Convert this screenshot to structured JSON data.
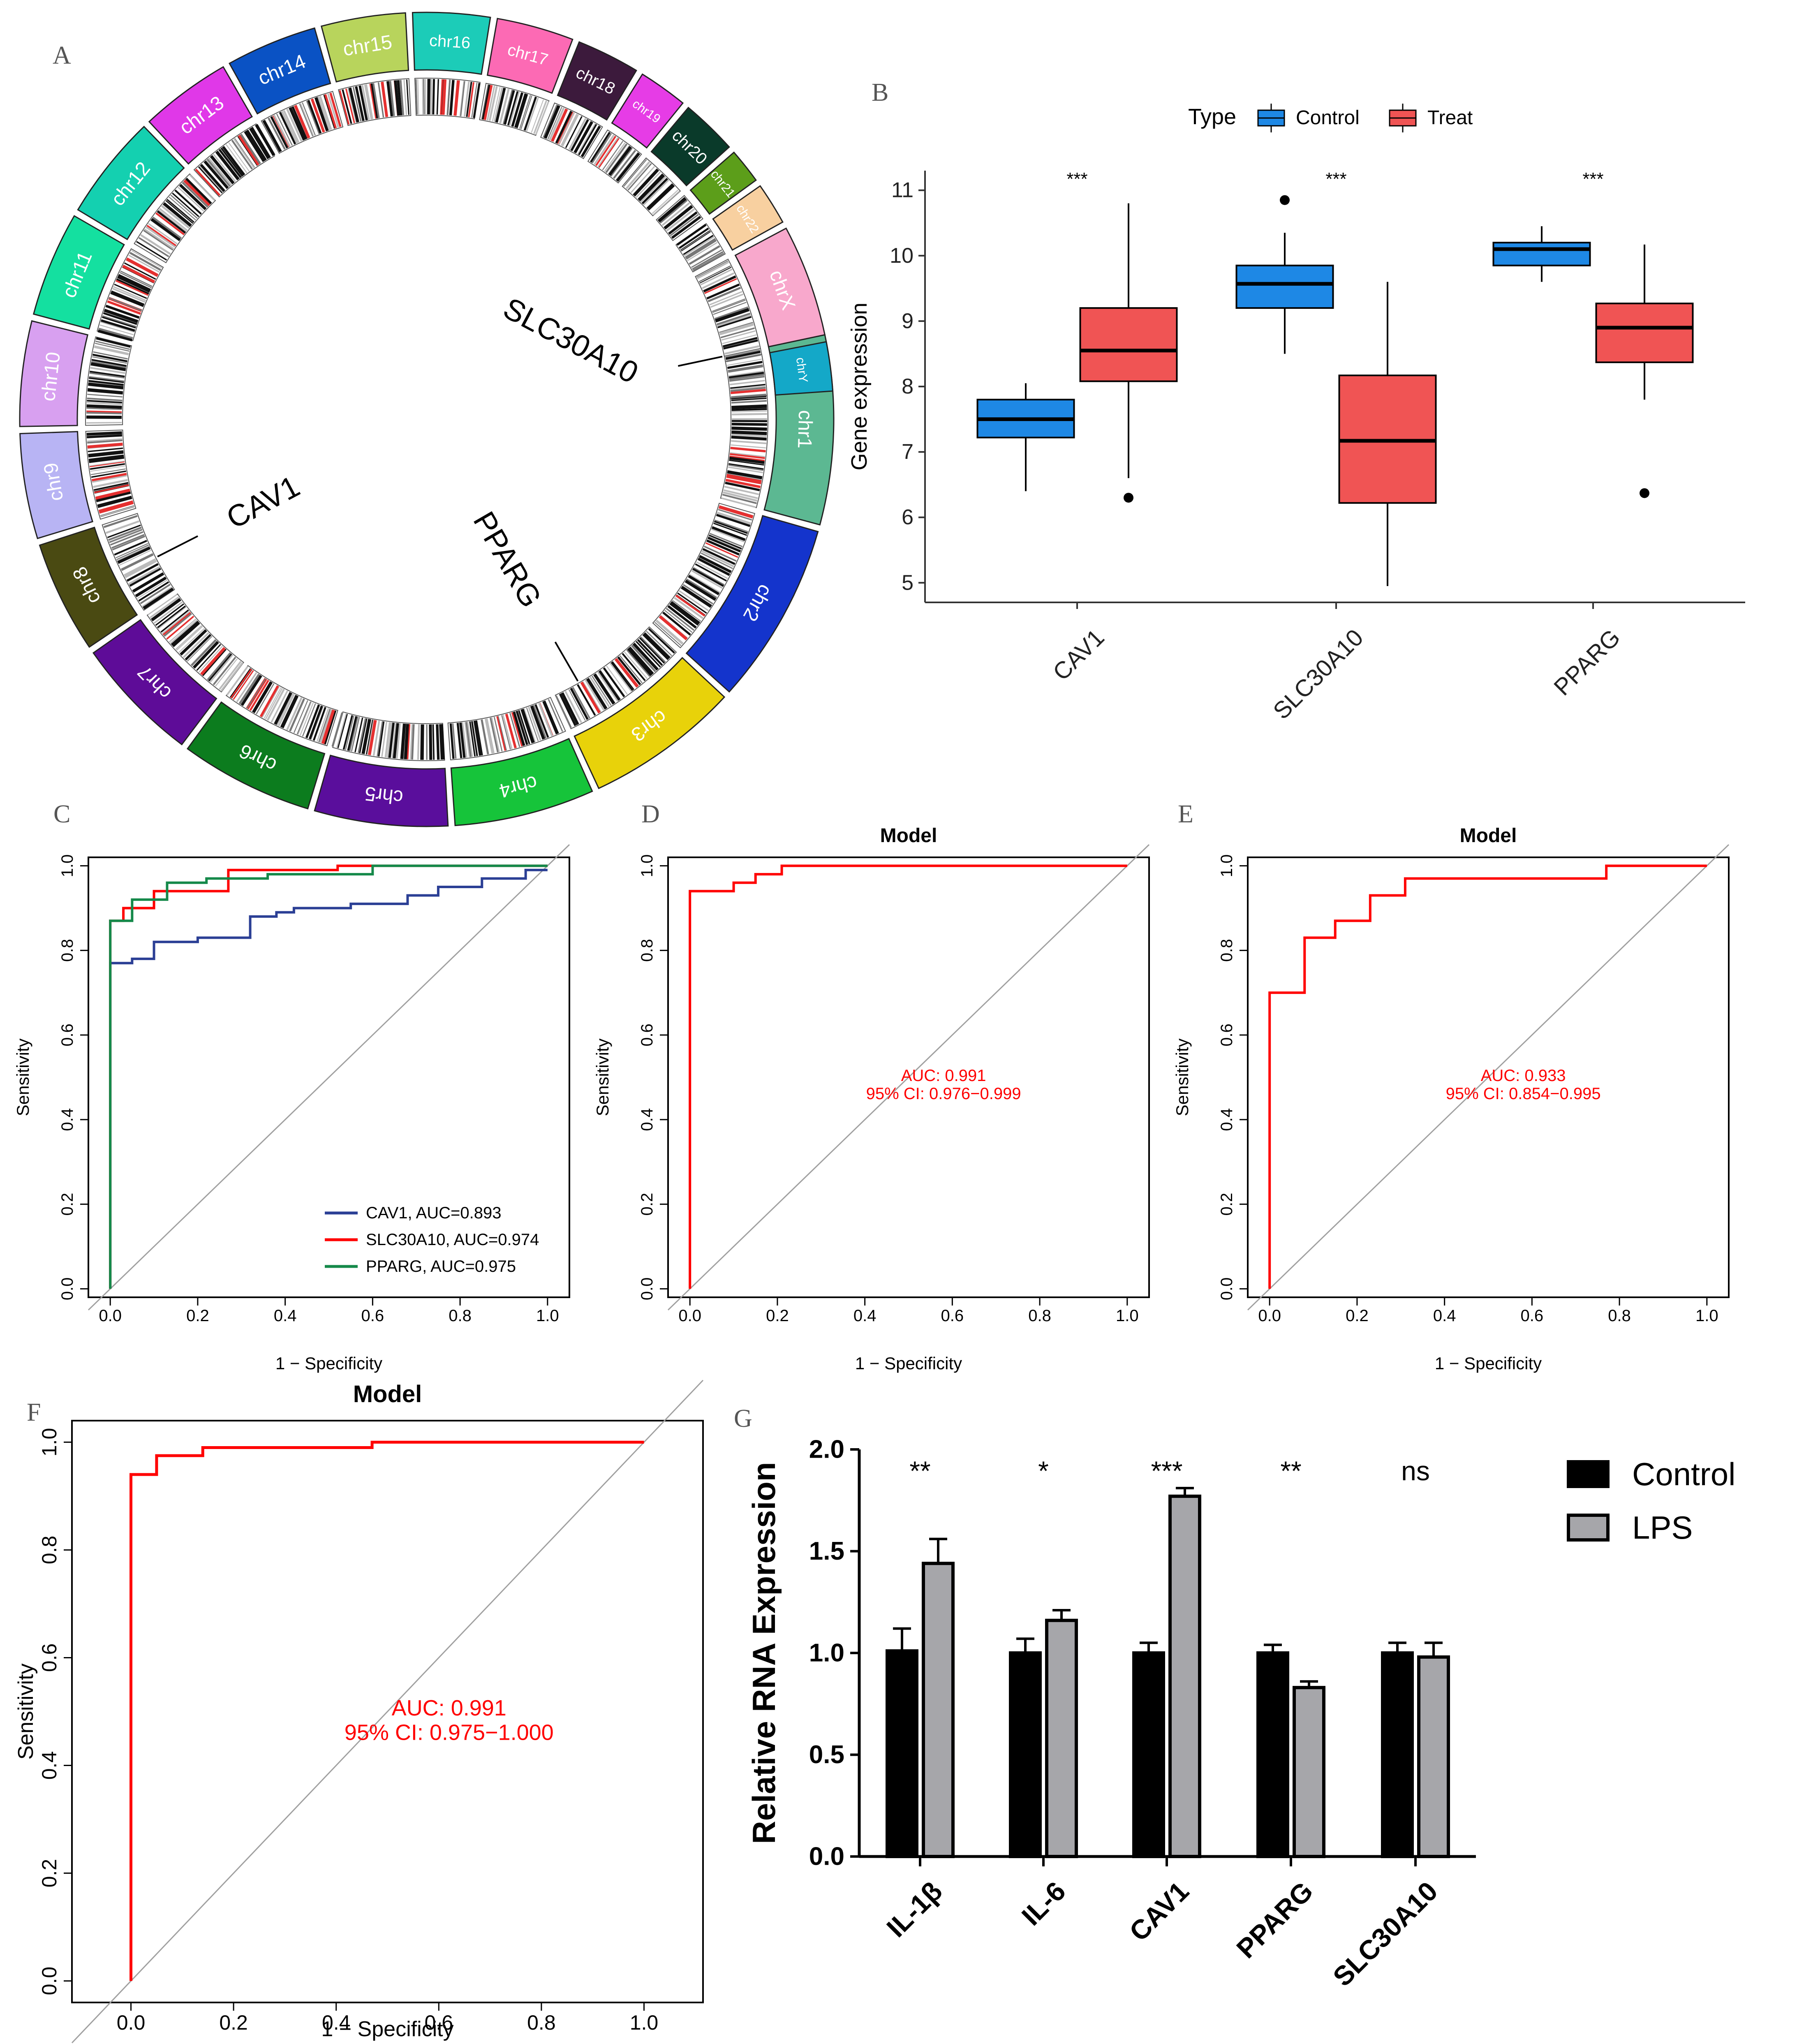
{
  "colors": {
    "control_blue": "#1E88E5",
    "treat_red": "#F05454",
    "roc_red": "#FF0000",
    "roc_blue": "#2B3F95",
    "roc_green": "#15894A",
    "diagonal": "#A0A0A0",
    "bar_control": "#000000",
    "bar_lps": "#A6A6AA"
  },
  "panel_labels": {
    "a": "A",
    "b": "B",
    "c": "C",
    "d": "D",
    "e": "E",
    "f": "F",
    "g": "G"
  },
  "chart_data": [
    {
      "id": "A",
      "type": "circos",
      "chromosomes": [
        {
          "name": "chr1",
          "color": "#5CB892",
          "start_deg": 78,
          "end_deg": 105
        },
        {
          "name": "chr2",
          "color": "#1434CC",
          "start_deg": 106,
          "end_deg": 132
        },
        {
          "name": "chr3",
          "color": "#E8D20A",
          "start_deg": 133,
          "end_deg": 155
        },
        {
          "name": "chr4",
          "color": "#16C43A",
          "start_deg": 156,
          "end_deg": 176
        },
        {
          "name": "chr5",
          "color": "#5A0E9C",
          "start_deg": 177,
          "end_deg": 196
        },
        {
          "name": "chr6",
          "color": "#0C7C1E",
          "start_deg": 197,
          "end_deg": 216
        },
        {
          "name": "chr7",
          "color": "#5E0C98",
          "start_deg": 217,
          "end_deg": 235
        },
        {
          "name": "chr8",
          "color": "#4A4A12",
          "start_deg": 236,
          "end_deg": 252
        },
        {
          "name": "chr9",
          "color": "#B8B4F4",
          "start_deg": 253,
          "end_deg": 268
        },
        {
          "name": "chr10",
          "color": "#D8A0F0",
          "start_deg": 269,
          "end_deg": 284
        },
        {
          "name": "chr11",
          "color": "#14E0A0",
          "start_deg": 285,
          "end_deg": 300
        },
        {
          "name": "chr12",
          "color": "#14D0B0",
          "start_deg": 301,
          "end_deg": 316
        },
        {
          "name": "chr13",
          "color": "#E038E8",
          "start_deg": 317,
          "end_deg": 330
        },
        {
          "name": "chr14",
          "color": "#0A52C4",
          "start_deg": 331,
          "end_deg": 344
        },
        {
          "name": "chr15",
          "color": "#B8D45C",
          "start_deg": 345,
          "end_deg": 357
        },
        {
          "name": "chr16",
          "color": "#1CCCB8",
          "start_deg": 358,
          "end_deg": 369
        },
        {
          "name": "chr17",
          "color": "#FC6AB4",
          "start_deg": 370,
          "end_deg": 381
        },
        {
          "name": "chr18",
          "color": "#3C1A3C",
          "start_deg": 382,
          "end_deg": 391
        },
        {
          "name": "chr19",
          "color": "#E63CE6",
          "start_deg": 392,
          "end_deg": 399
        },
        {
          "name": "chr20",
          "color": "#0A3A2A",
          "start_deg": 400,
          "end_deg": 408
        },
        {
          "name": "chr21",
          "color": "#5C9E1A",
          "start_deg": 409,
          "end_deg": 414
        },
        {
          "name": "chr22",
          "color": "#F8D0A0",
          "start_deg": 415,
          "end_deg": 421
        },
        {
          "name": "chrX",
          "color": "#F8A8CC",
          "start_deg": 422,
          "end_deg": 438
        },
        {
          "name": "chrY",
          "color": "#14A8C8",
          "start_deg": 439,
          "end_deg": 446
        }
      ],
      "genes": [
        {
          "name": "SLC30A10",
          "angle_deg": 78
        },
        {
          "name": "PPARG",
          "angle_deg": 150
        },
        {
          "name": "CAV1",
          "angle_deg": 243
        }
      ]
    },
    {
      "id": "B",
      "type": "box",
      "ylabel": "Gene expression",
      "legend_title": "Type",
      "legend": [
        "Control",
        "Treat"
      ],
      "categories": [
        "CAV1",
        "SLC30A10",
        "PPARG"
      ],
      "yticks": [
        5,
        6,
        7,
        8,
        9,
        10,
        11
      ],
      "ylim": [
        4.7,
        11.3
      ],
      "significance": [
        "***",
        "***",
        "***"
      ],
      "series": [
        {
          "name": "Control",
          "boxes": [
            {
              "min": 6.4,
              "q1": 7.22,
              "median": 7.5,
              "q3": 7.8,
              "max": 8.05,
              "outliers": []
            },
            {
              "min": 8.5,
              "q1": 9.2,
              "median": 9.57,
              "q3": 9.85,
              "max": 10.35,
              "outliers": [
                10.85
              ]
            },
            {
              "min": 9.6,
              "q1": 9.85,
              "median": 10.1,
              "q3": 10.2,
              "max": 10.45,
              "outliers": []
            }
          ]
        },
        {
          "name": "Treat",
          "boxes": [
            {
              "min": 6.6,
              "q1": 8.08,
              "median": 8.55,
              "q3": 9.2,
              "max": 10.8,
              "outliers": [
                6.3
              ]
            },
            {
              "min": 4.95,
              "q1": 6.22,
              "median": 7.17,
              "q3": 8.17,
              "max": 9.6,
              "outliers": []
            },
            {
              "min": 7.8,
              "q1": 8.37,
              "median": 8.9,
              "q3": 9.27,
              "max": 10.17,
              "outliers": [
                6.37
              ]
            }
          ]
        }
      ]
    },
    {
      "id": "C",
      "type": "line",
      "title": "",
      "xlabel": "1 − Specificity",
      "ylabel": "Sensitivity",
      "xticks": [
        "0.0",
        "0.2",
        "0.4",
        "0.6",
        "0.8",
        "1.0"
      ],
      "yticks": [
        "0.0",
        "0.2",
        "0.4",
        "0.6",
        "0.8",
        "1.0"
      ],
      "xlim": [
        -0.05,
        1.05
      ],
      "ylim": [
        -0.02,
        1.02
      ],
      "series": [
        {
          "name": "CAV1, AUC=0.893",
          "color": "#2B3F95",
          "x": [
            0,
            0,
            0.05,
            0.05,
            0.1,
            0.1,
            0.2,
            0.2,
            0.32,
            0.32,
            0.38,
            0.38,
            0.42,
            0.42,
            0.55,
            0.55,
            0.68,
            0.68,
            0.75,
            0.75,
            0.85,
            0.85,
            0.95,
            0.95,
            1.0
          ],
          "y": [
            0,
            0.77,
            0.77,
            0.78,
            0.78,
            0.82,
            0.82,
            0.83,
            0.83,
            0.88,
            0.88,
            0.89,
            0.89,
            0.9,
            0.9,
            0.91,
            0.91,
            0.93,
            0.93,
            0.95,
            0.95,
            0.97,
            0.97,
            0.99,
            0.99
          ]
        },
        {
          "name": "SLC30A10, AUC=0.974",
          "color": "#FF0000",
          "x": [
            0,
            0,
            0.03,
            0.03,
            0.1,
            0.1,
            0.27,
            0.27,
            0.52,
            0.52,
            1.0
          ],
          "y": [
            0,
            0.87,
            0.87,
            0.9,
            0.9,
            0.94,
            0.94,
            0.99,
            0.99,
            1.0,
            1.0
          ]
        },
        {
          "name": "PPARG, AUC=0.975",
          "color": "#15894A",
          "x": [
            0,
            0,
            0.05,
            0.05,
            0.13,
            0.13,
            0.22,
            0.22,
            0.36,
            0.36,
            0.6,
            0.6,
            1.0
          ],
          "y": [
            0,
            0.87,
            0.87,
            0.92,
            0.92,
            0.96,
            0.96,
            0.97,
            0.97,
            0.98,
            0.98,
            1.0,
            1.0
          ]
        }
      ]
    },
    {
      "id": "D",
      "type": "line",
      "title": "Model",
      "xlabel": "1 − Specificity",
      "ylabel": "Sensitivity",
      "xticks": [
        "0.0",
        "0.2",
        "0.4",
        "0.6",
        "0.8",
        "1.0"
      ],
      "yticks": [
        "0.0",
        "0.2",
        "0.4",
        "0.6",
        "0.8",
        "1.0"
      ],
      "xlim": [
        -0.05,
        1.05
      ],
      "ylim": [
        -0.02,
        1.02
      ],
      "auc_text": "AUC: 0.991",
      "ci_text": "95% CI: 0.976−0.999",
      "annotation_at": [
        0.58,
        0.47
      ],
      "series": [
        {
          "name": "Model",
          "color": "#FF0000",
          "x": [
            0,
            0,
            0.1,
            0.1,
            0.15,
            0.15,
            0.21,
            0.21,
            1.0
          ],
          "y": [
            0,
            0.94,
            0.94,
            0.96,
            0.96,
            0.98,
            0.98,
            1.0,
            1.0
          ]
        }
      ]
    },
    {
      "id": "E",
      "type": "line",
      "title": "Model",
      "xlabel": "1 − Specificity",
      "ylabel": "Sensitivity",
      "xticks": [
        "0.0",
        "0.2",
        "0.4",
        "0.6",
        "0.8",
        "1.0"
      ],
      "yticks": [
        "0.0",
        "0.2",
        "0.4",
        "0.6",
        "0.8",
        "1.0"
      ],
      "xlim": [
        -0.05,
        1.05
      ],
      "ylim": [
        -0.02,
        1.02
      ],
      "auc_text": "AUC: 0.933",
      "ci_text": "95% CI: 0.854−0.995",
      "annotation_at": [
        0.58,
        0.47
      ],
      "series": [
        {
          "name": "Model",
          "color": "#FF0000",
          "x": [
            0,
            0,
            0.08,
            0.08,
            0.15,
            0.15,
            0.23,
            0.23,
            0.31,
            0.31,
            0.77,
            0.77,
            1.0
          ],
          "y": [
            0,
            0.7,
            0.7,
            0.83,
            0.83,
            0.87,
            0.87,
            0.93,
            0.93,
            0.97,
            0.97,
            1.0,
            1.0
          ]
        }
      ]
    },
    {
      "id": "F",
      "type": "line",
      "title": "Model",
      "xlabel": "1 − Specificity",
      "ylabel": "Sensitivity",
      "xticks": [
        "0.0",
        "0.2",
        "0.4",
        "0.6",
        "0.8",
        "1.0"
      ],
      "yticks": [
        "0.0",
        "0.2",
        "0.4",
        "0.6",
        "0.8",
        "1.0"
      ],
      "xlim": [
        -0.115,
        1.115
      ],
      "ylim": [
        -0.04,
        1.04
      ],
      "auc_text": "AUC: 0.991",
      "ci_text": "95% CI: 0.975−1.000",
      "annotation_at": [
        0.62,
        0.47
      ],
      "series": [
        {
          "name": "Model",
          "color": "#FF0000",
          "x": [
            0,
            0,
            0.05,
            0.05,
            0.14,
            0.14,
            0.47,
            0.47,
            1.0
          ],
          "y": [
            0,
            0.94,
            0.94,
            0.975,
            0.975,
            0.99,
            0.99,
            1.0,
            1.0
          ]
        }
      ]
    },
    {
      "id": "G",
      "type": "bar",
      "ylabel": "Relative RNA Expression",
      "categories": [
        "IL-1β",
        "IL-6",
        "CAV1",
        "PPARG",
        "SLC30A10"
      ],
      "yticks": [
        "0.0",
        "0.5",
        "1.0",
        "1.5",
        "2.0"
      ],
      "ylim": [
        0,
        2.0
      ],
      "significance": [
        "**",
        "*",
        "***",
        "**",
        "ns"
      ],
      "series": [
        {
          "name": "Control",
          "color": "#000000",
          "values": [
            1.01,
            1.0,
            1.0,
            1.0,
            1.0
          ],
          "errors": [
            0.11,
            0.07,
            0.05,
            0.04,
            0.05
          ]
        },
        {
          "name": "LPS",
          "color": "#A6A6AA",
          "values": [
            1.44,
            1.16,
            1.77,
            0.83,
            0.98
          ],
          "errors": [
            0.12,
            0.05,
            0.04,
            0.03,
            0.07
          ]
        }
      ]
    }
  ]
}
